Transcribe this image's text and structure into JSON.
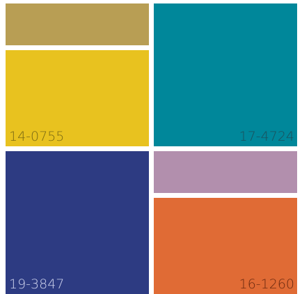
{
  "swatches": {
    "olive": {
      "color": "#B89E54"
    },
    "yellow": {
      "color": "#E8C21F",
      "code": "14-0755",
      "text_color": "#7a6a14"
    },
    "teal": {
      "color": "#00879A",
      "code": "17-4724",
      "text_color": "#1c4f5a"
    },
    "navy": {
      "color": "#2D3B82",
      "code": "19-3847",
      "text_color": "#cfd4ee"
    },
    "lilac": {
      "color": "#B28FAD"
    },
    "orange": {
      "color": "#E06B35",
      "code": "16-1260",
      "text_color": "#6b2a10"
    }
  }
}
